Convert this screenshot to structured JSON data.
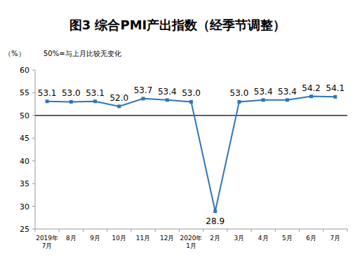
{
  "chart_data": {
    "type": "line",
    "title": "图3 综合PMI产出指数（经季节调整）",
    "y_label": "（%）",
    "note": "50%=与上月比较无变化",
    "categories": [
      "2019年\n7月",
      "8月",
      "9月",
      "10月",
      "11月",
      "12月",
      "2020年\n1月",
      "2月",
      "3月",
      "4月",
      "5月",
      "6月",
      "7月"
    ],
    "values": [
      53.1,
      53.0,
      53.1,
      52.0,
      53.7,
      53.4,
      53.0,
      28.9,
      53.0,
      53.4,
      53.4,
      54.2,
      54.1
    ],
    "value_labels": [
      "53.1",
      "53.0",
      "53.1",
      "52.0",
      "53.7",
      "53.4",
      "53.0",
      "28.9",
      "53.0",
      "53.4",
      "53.4",
      "54.2",
      "54.1"
    ],
    "color": "#2e75b6",
    "marker": "square",
    "data_labels": true,
    "grid": false,
    "reference_line": 50,
    "ylim": [
      25,
      60
    ],
    "yticks": [
      25,
      30,
      35,
      40,
      45,
      50,
      55,
      60
    ]
  }
}
